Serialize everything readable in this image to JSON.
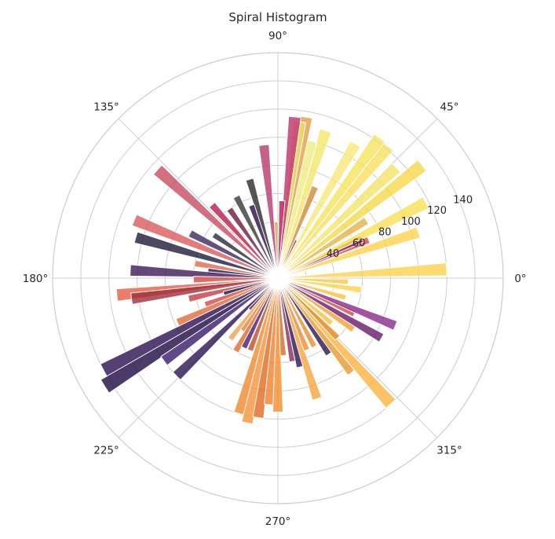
{
  "chart_data": {
    "type": "bar",
    "projection": "polar",
    "title": "Spiral Histogram",
    "angle_ticks": [
      "0°",
      "45°",
      "90°",
      "135°",
      "180°",
      "225°",
      "270°",
      "315°"
    ],
    "angle_tick_values": [
      0,
      45,
      90,
      135,
      180,
      225,
      270,
      315
    ],
    "radial_ticks": [
      "40",
      "60",
      "80",
      "100",
      "120",
      "140"
    ],
    "radial_tick_values": [
      40,
      60,
      80,
      100,
      120,
      140
    ],
    "rlim": [
      0,
      160
    ],
    "grid": true,
    "colormap": "inferno",
    "bars": [
      {
        "angle": 3,
        "value": 120,
        "color": "#fbd24c"
      },
      {
        "angle": 10,
        "value": 10,
        "color": "#fbd24c"
      },
      {
        "angle": 18,
        "value": 105,
        "color": "#fbd24c"
      },
      {
        "angle": 23,
        "value": 70,
        "color": "#d44842"
      },
      {
        "angle": 25,
        "value": 66,
        "color": "#8a226a"
      },
      {
        "angle": 27,
        "value": 118,
        "color": "#f6e152"
      },
      {
        "angle": 33,
        "value": 75,
        "color": "#e5b34a"
      },
      {
        "angle": 38,
        "value": 130,
        "color": "#f5d848"
      },
      {
        "angle": 43,
        "value": 115,
        "color": "#f2e46a"
      },
      {
        "angle": 50,
        "value": 122,
        "color": "#f7e060"
      },
      {
        "angle": 54,
        "value": 123,
        "color": "#f4e35c"
      },
      {
        "angle": 60,
        "value": 110,
        "color": "#f6e87a"
      },
      {
        "angle": 65,
        "value": 30,
        "color": "#8a226a"
      },
      {
        "angle": 68,
        "value": 70,
        "color": "#d08a3b"
      },
      {
        "angle": 72,
        "value": 110,
        "color": "#f2e66c"
      },
      {
        "angle": 76,
        "value": 100,
        "color": "#f0ec84"
      },
      {
        "angle": 80,
        "value": 116,
        "color": "#e0a043"
      },
      {
        "angle": 82,
        "value": 112,
        "color": "#ecdc6a"
      },
      {
        "angle": 84,
        "value": 115,
        "color": "#c0306a"
      },
      {
        "angle": 87,
        "value": 55,
        "color": "#b01e5a"
      },
      {
        "angle": 92,
        "value": 40,
        "color": "#d4a04a"
      },
      {
        "angle": 96,
        "value": 95,
        "color": "#b83a72"
      },
      {
        "angle": 106,
        "value": 73,
        "color": "#2a2a2a"
      },
      {
        "angle": 110,
        "value": 55,
        "color": "#2c0a4e"
      },
      {
        "angle": 117,
        "value": 65,
        "color": "#3a3a3a"
      },
      {
        "angle": 125,
        "value": 60,
        "color": "#6a1a40"
      },
      {
        "angle": 132,
        "value": 70,
        "color": "#b41e4a"
      },
      {
        "angle": 138,
        "value": 115,
        "color": "#c74c60"
      },
      {
        "angle": 146,
        "value": 55,
        "color": "#2a2a3a"
      },
      {
        "angle": 153,
        "value": 70,
        "color": "#3a2a5a"
      },
      {
        "angle": 158,
        "value": 110,
        "color": "#db5a5a"
      },
      {
        "angle": 164,
        "value": 105,
        "color": "#1e1b3a"
      },
      {
        "angle": 170,
        "value": 60,
        "color": "#e06a4a"
      },
      {
        "angle": 174,
        "value": 50,
        "color": "#2c0e54"
      },
      {
        "angle": 177,
        "value": 105,
        "color": "#3c1a58"
      },
      {
        "angle": 181,
        "value": 60,
        "color": "#d44842"
      },
      {
        "angle": 186,
        "value": 115,
        "color": "#e65d45"
      },
      {
        "angle": 188,
        "value": 105,
        "color": "#a02e3a"
      },
      {
        "angle": 193,
        "value": 65,
        "color": "#c43c40"
      },
      {
        "angle": 196,
        "value": 40,
        "color": "#1c0c3c"
      },
      {
        "angle": 200,
        "value": 55,
        "color": "#d44842"
      },
      {
        "angle": 204,
        "value": 78,
        "color": "#e06a3a"
      },
      {
        "angle": 208,
        "value": 140,
        "color": "#2c1050"
      },
      {
        "angle": 212,
        "value": 145,
        "color": "#1e0a44"
      },
      {
        "angle": 216,
        "value": 100,
        "color": "#3a1a6a"
      },
      {
        "angle": 224,
        "value": 100,
        "color": "#2c1454"
      },
      {
        "angle": 228,
        "value": 30,
        "color": "#5a1a5a"
      },
      {
        "angle": 232,
        "value": 55,
        "color": "#f0a050"
      },
      {
        "angle": 236,
        "value": 45,
        "color": "#f08030"
      },
      {
        "angle": 240,
        "value": 60,
        "color": "#e06a2a"
      },
      {
        "angle": 244,
        "value": 55,
        "color": "#4a1a6a"
      },
      {
        "angle": 249,
        "value": 55,
        "color": "#c44a2a"
      },
      {
        "angle": 254,
        "value": 100,
        "color": "#f08a30"
      },
      {
        "angle": 258,
        "value": 105,
        "color": "#f5933a"
      },
      {
        "angle": 262,
        "value": 100,
        "color": "#e06a22"
      },
      {
        "angle": 266,
        "value": 90,
        "color": "#f08030"
      },
      {
        "angle": 270,
        "value": 95,
        "color": "#f68d2e"
      },
      {
        "angle": 274,
        "value": 55,
        "color": "#d86a28"
      },
      {
        "angle": 280,
        "value": 60,
        "color": "#8a2a5a"
      },
      {
        "angle": 284,
        "value": 65,
        "color": "#2c1454"
      },
      {
        "angle": 288,
        "value": 90,
        "color": "#f8a540"
      },
      {
        "angle": 292,
        "value": 55,
        "color": "#f08a30"
      },
      {
        "angle": 298,
        "value": 55,
        "color": "#f08a30"
      },
      {
        "angle": 304,
        "value": 65,
        "color": "#2c1454"
      },
      {
        "angle": 308,
        "value": 85,
        "color": "#e89a30"
      },
      {
        "angle": 312,
        "value": 120,
        "color": "#fbb33e"
      },
      {
        "angle": 315,
        "value": 60,
        "color": "#e08a20"
      },
      {
        "angle": 320,
        "value": 50,
        "color": "#fbbf3a"
      },
      {
        "angle": 326,
        "value": 65,
        "color": "#f5a030"
      },
      {
        "angle": 330,
        "value": 85,
        "color": "#6a1a6a"
      },
      {
        "angle": 335,
        "value": 60,
        "color": "#d44842"
      },
      {
        "angle": 338,
        "value": 90,
        "color": "#8a2a8a"
      },
      {
        "angle": 344,
        "value": 50,
        "color": "#fbbf3a"
      },
      {
        "angle": 352,
        "value": 60,
        "color": "#fbd24c"
      },
      {
        "angle": 357,
        "value": 50,
        "color": "#f8c845"
      }
    ]
  }
}
